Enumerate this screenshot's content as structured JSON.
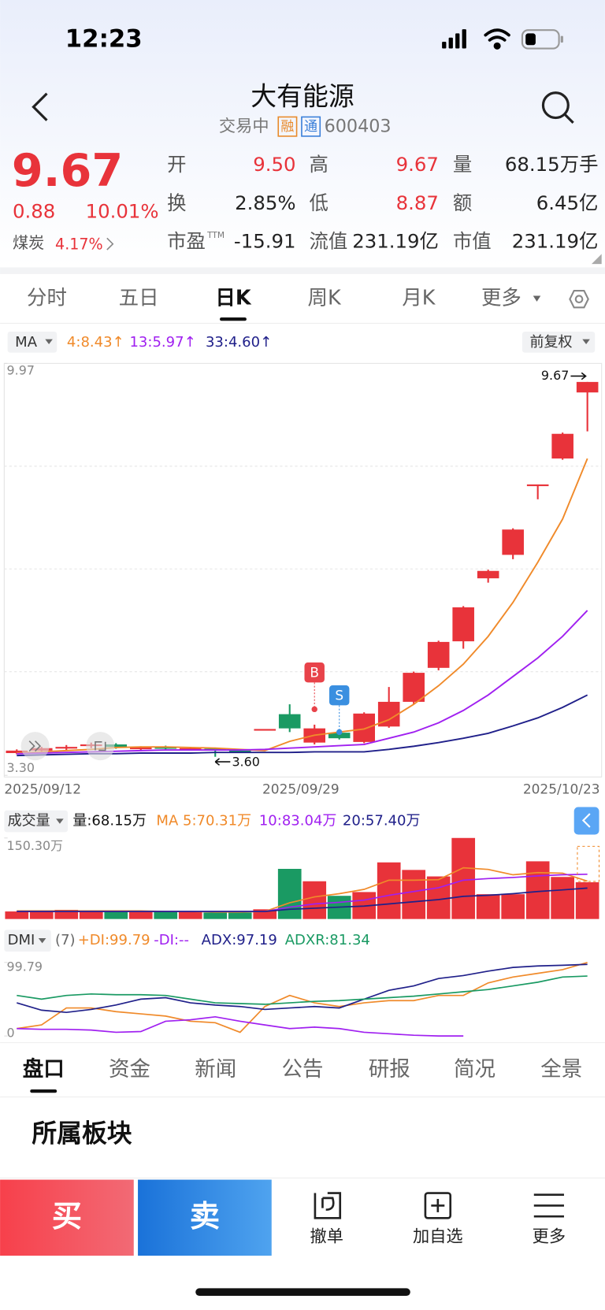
{
  "status_bar": {
    "time": "12:23"
  },
  "header": {
    "title": "大有能源",
    "state": "交易中",
    "tags": [
      "融",
      "通"
    ],
    "code": "600403"
  },
  "quote": {
    "price": "9.67",
    "change": "0.88",
    "change_pct": "10.01%",
    "sector": "煤炭",
    "sector_pct": "4.17%"
  },
  "stats": [
    {
      "label": "开",
      "value": "9.50",
      "color": "#e8333a"
    },
    {
      "label": "高",
      "value": "9.67",
      "color": "#e8333a"
    },
    {
      "label": "量",
      "value": "68.15万手",
      "color": "#222222"
    },
    {
      "label": "换",
      "value": "2.85%",
      "color": "#222222"
    },
    {
      "label": "低",
      "value": "8.87",
      "color": "#e8333a"
    },
    {
      "label": "额",
      "value": "6.45亿",
      "color": "#222222"
    },
    {
      "label": "市盈",
      "sup": "TTM",
      "value": "-15.91",
      "color": "#222222"
    },
    {
      "label": "流值",
      "value": "231.19亿",
      "color": "#222222"
    },
    {
      "label": "市值",
      "value": "231.19亿",
      "color": "#222222"
    }
  ],
  "period_tabs": {
    "items": [
      "分时",
      "五日",
      "日K",
      "周K",
      "月K",
      "更多"
    ],
    "active": 2
  },
  "kline": {
    "indicator": "MA",
    "adjust": "前复权",
    "ylim": [
      3.3,
      9.97
    ],
    "yticks": [
      {
        "value": 3.3,
        "label": "3.30"
      },
      9.97
    ],
    "x_labels": [
      "2025/09/12",
      "2025/09/29",
      "2025/10/23"
    ],
    "high_label": "9.67",
    "low_label": "3.60",
    "up_color": "#e8333a",
    "down_color": "#1a9a63",
    "open": [
      3.66,
      3.7,
      3.74,
      3.78,
      3.8,
      3.73,
      3.76,
      3.73,
      3.73,
      3.7,
      4.05,
      4.29,
      3.83,
      3.99,
      3.84,
      4.09,
      4.49,
      5.04,
      5.47,
      6.49,
      6.87,
      8.01,
      8.43,
      9.5
    ],
    "close": [
      3.7,
      3.74,
      3.76,
      3.8,
      3.76,
      3.75,
      3.73,
      3.74,
      3.71,
      3.68,
      4.05,
      4.06,
      4.06,
      3.9,
      4.3,
      4.49,
      4.96,
      5.46,
      6.02,
      6.61,
      7.28,
      8.01,
      8.83,
      9.67
    ],
    "high": [
      3.72,
      3.76,
      3.79,
      3.83,
      3.82,
      3.77,
      3.78,
      3.76,
      3.75,
      3.72,
      4.05,
      4.45,
      4.12,
      4.0,
      4.32,
      4.73,
      4.98,
      5.48,
      6.04,
      6.63,
      7.3,
      8.01,
      8.85,
      9.67
    ],
    "low": [
      3.64,
      3.68,
      3.71,
      3.74,
      3.73,
      3.71,
      3.72,
      3.71,
      3.6,
      3.67,
      4.05,
      4.0,
      3.8,
      3.88,
      3.82,
      4.07,
      4.45,
      5.0,
      5.35,
      6.42,
      6.8,
      7.77,
      8.41,
      8.87
    ],
    "ma": [
      {
        "name": "4:8.43↑",
        "color": "#f08a2a",
        "values": [
          3.66,
          3.68,
          3.7,
          3.72,
          3.75,
          3.76,
          3.76,
          3.75,
          3.74,
          3.72,
          3.7,
          3.85,
          3.95,
          4.0,
          4.05,
          4.2,
          4.45,
          4.75,
          5.1,
          5.55,
          6.1,
          6.75,
          7.45,
          8.43
        ]
      },
      {
        "name": "13:5.97↑",
        "color": "#a020f0",
        "values": [
          3.65,
          3.66,
          3.67,
          3.68,
          3.69,
          3.7,
          3.71,
          3.71,
          3.71,
          3.71,
          3.72,
          3.74,
          3.76,
          3.78,
          3.8,
          3.9,
          4.0,
          4.15,
          4.35,
          4.6,
          4.9,
          5.2,
          5.55,
          5.97
        ]
      },
      {
        "name": "33:4.60↑",
        "color": "#20208a",
        "values": [
          3.62,
          3.63,
          3.64,
          3.65,
          3.65,
          3.66,
          3.66,
          3.66,
          3.67,
          3.67,
          3.67,
          3.67,
          3.68,
          3.68,
          3.68,
          3.72,
          3.77,
          3.83,
          3.9,
          3.98,
          4.1,
          4.23,
          4.4,
          4.6
        ]
      }
    ],
    "markers": [
      {
        "label": "B",
        "color": "#e8434a",
        "at": 12,
        "price": 4.37
      },
      {
        "label": "S",
        "color": "#3a8fe0",
        "at": 13,
        "price": 4.0
      }
    ]
  },
  "volume": {
    "title": "成交量",
    "current": "量:68.15万",
    "ylim": [
      0,
      150.3
    ],
    "yticks": [
      {
        "value": 150.3,
        "label": "150.30万"
      }
    ],
    "values": [
      14,
      15,
      17,
      15,
      14,
      13,
      14,
      13,
      12,
      12,
      18,
      93,
      70,
      43,
      50,
      105,
      91,
      79,
      150.3,
      46,
      46,
      107,
      78,
      68.15
    ],
    "ma": [
      {
        "name": "MA 5:70.31万",
        "color": "#f08a2a",
        "values": [
          15,
          15,
          15,
          15,
          15,
          15,
          14,
          14,
          13,
          13,
          14,
          30,
          41,
          47,
          55,
          72,
          72,
          73,
          95,
          92,
          82,
          86,
          85,
          70.31
        ]
      },
      {
        "name": "10:83.04万",
        "color": "#a020f0",
        "values": [
          14,
          14,
          14,
          14,
          14,
          14,
          14,
          14,
          14,
          14,
          14,
          22,
          28,
          31,
          35,
          44,
          51,
          58,
          72,
          75,
          77,
          80,
          82,
          83.04
        ]
      },
      {
        "name": "20:57.40万",
        "color": "#20208a",
        "values": [
          14,
          14,
          14,
          14,
          14,
          14,
          14,
          14,
          14,
          14,
          14,
          18,
          20,
          22,
          24,
          28,
          32,
          36,
          42,
          44,
          47,
          51,
          54,
          57.4
        ]
      }
    ]
  },
  "dmi": {
    "title": "DMI",
    "param": "(7)",
    "ylim": [
      0,
      99.79
    ],
    "yticks": [
      0,
      99.79
    ],
    "series": [
      {
        "name": "+DI:99.79",
        "color": "#f08a2a",
        "values": [
          10,
          15,
          38,
          38,
          33,
          30,
          27,
          20,
          18,
          5,
          40,
          55,
          45,
          40,
          45,
          48,
          48,
          55,
          55,
          72,
          80,
          85,
          90,
          99.79
        ]
      },
      {
        "name": "-DI:--",
        "color": "#a020f0",
        "values": [
          10,
          9,
          9,
          8,
          5,
          6,
          20,
          22,
          26,
          20,
          15,
          10,
          12,
          10,
          5,
          3,
          1,
          0,
          0,
          null,
          null,
          null,
          null,
          null
        ]
      },
      {
        "name": "ADX:97.19",
        "color": "#20208a",
        "values": [
          45,
          35,
          32,
          36,
          42,
          50,
          52,
          45,
          42,
          40,
          36,
          38,
          40,
          38,
          50,
          62,
          68,
          78,
          82,
          88,
          93,
          95,
          96,
          97.19
        ]
      },
      {
        "name": "ADXR:81.34",
        "color": "#1a9a63",
        "values": [
          55,
          50,
          55,
          57,
          56,
          56,
          55,
          50,
          45,
          44,
          43,
          45,
          47,
          48,
          50,
          52,
          54,
          57,
          60,
          63,
          68,
          73,
          80,
          81.34
        ]
      }
    ]
  },
  "info_tabs": {
    "items": [
      "盘口",
      "资金",
      "新闻",
      "公告",
      "研报",
      "简况",
      "全景"
    ],
    "active": 0
  },
  "section_title": "所属板块",
  "actions": {
    "buy": "买",
    "sell": "卖",
    "items": [
      "撤单",
      "加自选",
      "更多"
    ]
  }
}
